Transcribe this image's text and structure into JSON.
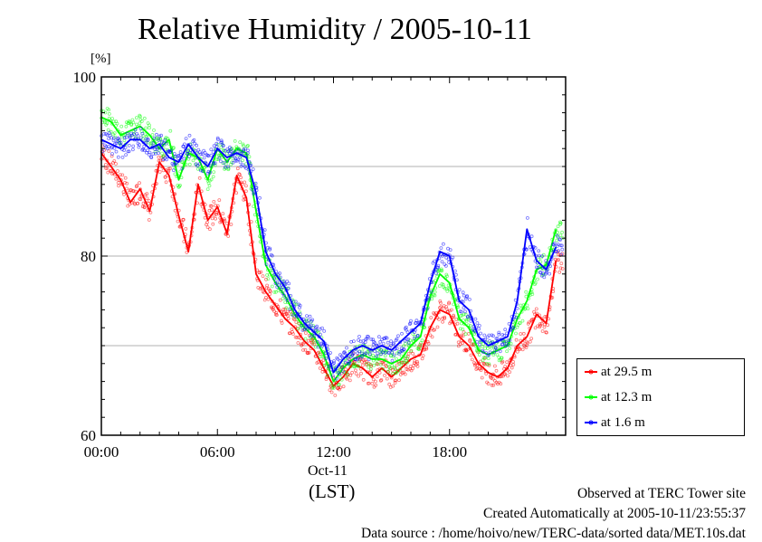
{
  "chart_data": {
    "type": "line",
    "title": "Relative Humidity / 2005-10-11",
    "ylabel": "[%]",
    "xlabel": "(LST)",
    "x_date_label": "Oct-11",
    "ylim": [
      60,
      100
    ],
    "xlim": [
      "00:00",
      "24:00"
    ],
    "yticks": [
      "60",
      "80",
      "100"
    ],
    "xticks": [
      "00:00",
      "06:00",
      "12:00",
      "18:00"
    ],
    "grid": true,
    "legend_position": "lower-right outside",
    "x": [
      "00:00",
      "00:30",
      "01:00",
      "01:30",
      "02:00",
      "02:30",
      "03:00",
      "03:30",
      "04:00",
      "04:30",
      "05:00",
      "05:30",
      "06:00",
      "06:30",
      "07:00",
      "07:30",
      "08:00",
      "08:30",
      "09:00",
      "09:30",
      "10:00",
      "10:30",
      "11:00",
      "11:30",
      "12:00",
      "12:30",
      "13:00",
      "13:30",
      "14:00",
      "14:30",
      "15:00",
      "15:30",
      "16:00",
      "16:30",
      "17:00",
      "17:30",
      "18:00",
      "18:30",
      "19:00",
      "19:30",
      "20:00",
      "20:30",
      "21:00",
      "21:30",
      "22:00",
      "22:30",
      "23:00",
      "23:30"
    ],
    "series": [
      {
        "name": "at 29.5 m",
        "color": "#ff0000",
        "values": [
          91.5,
          90.0,
          88.5,
          86.0,
          87.5,
          85.0,
          90.5,
          89.0,
          84.5,
          80.5,
          88.0,
          84.0,
          85.5,
          82.5,
          89.0,
          86.5,
          78.0,
          76.0,
          74.5,
          73.0,
          72.0,
          70.5,
          69.5,
          67.5,
          65.5,
          66.5,
          68.0,
          67.5,
          66.5,
          67.5,
          66.5,
          67.5,
          68.5,
          69.0,
          72.0,
          74.0,
          73.5,
          71.0,
          70.0,
          68.0,
          67.0,
          66.5,
          67.5,
          70.0,
          71.0,
          73.5,
          72.5,
          79.5
        ]
      },
      {
        "name": "at 12.3 m",
        "color": "#00ff00",
        "values": [
          95.5,
          95.0,
          93.5,
          94.0,
          94.5,
          93.5,
          92.0,
          93.0,
          88.5,
          91.5,
          91.0,
          88.5,
          92.0,
          90.5,
          92.0,
          91.5,
          85.0,
          79.0,
          77.0,
          75.5,
          73.5,
          72.0,
          71.0,
          69.0,
          66.0,
          67.5,
          68.5,
          69.0,
          68.5,
          68.5,
          68.0,
          68.5,
          70.0,
          71.0,
          75.5,
          78.0,
          77.0,
          73.0,
          72.0,
          69.5,
          69.0,
          69.5,
          70.0,
          73.0,
          75.0,
          78.5,
          79.0,
          83.0
        ]
      },
      {
        "name": "at 1.6 m",
        "color": "#0000ff",
        "values": [
          93.0,
          92.5,
          92.0,
          93.0,
          93.0,
          92.0,
          92.5,
          91.0,
          90.5,
          92.5,
          91.0,
          90.0,
          92.0,
          91.0,
          91.5,
          91.0,
          87.0,
          80.5,
          78.0,
          76.5,
          74.0,
          72.5,
          71.5,
          70.5,
          67.0,
          68.5,
          69.5,
          70.0,
          69.5,
          70.0,
          69.5,
          70.5,
          71.5,
          72.5,
          77.0,
          80.5,
          80.0,
          75.0,
          74.0,
          71.0,
          70.0,
          70.5,
          71.0,
          75.0,
          83.0,
          79.5,
          78.5,
          81.0
        ]
      }
    ]
  },
  "footer": {
    "site": "Observed at TERC Tower site",
    "created": "Created Automatically at 2005-10-11/23:55:37",
    "source": "Data source : /home/hoivo/new/TERC-data/sorted  data/MET.10s.dat"
  }
}
